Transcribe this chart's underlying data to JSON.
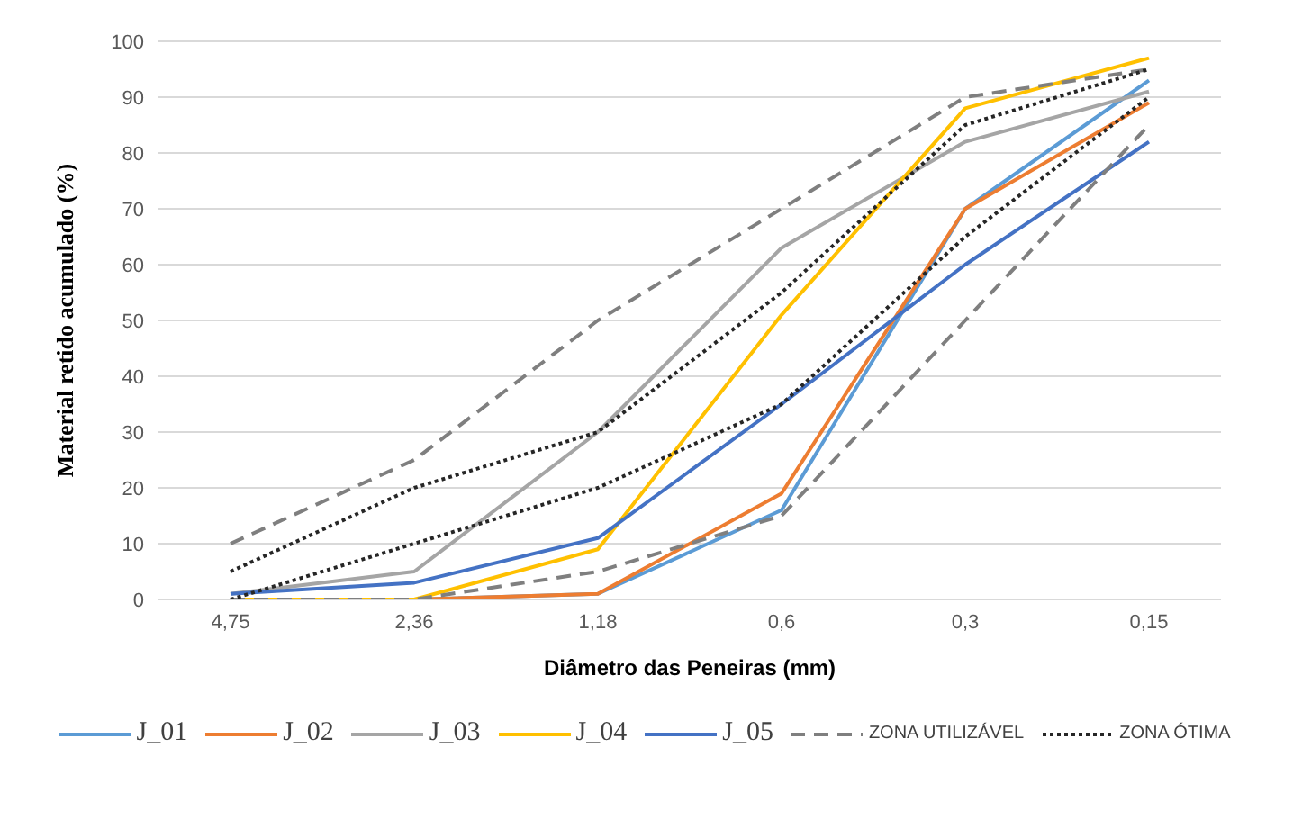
{
  "chart_data": {
    "type": "line",
    "xlabel": "Diâmetro das Peneiras (mm)",
    "ylabel": "Material retido acumulado (%)",
    "categories": [
      "4,75",
      "2,36",
      "1,18",
      "0,6",
      "0,3",
      "0,15"
    ],
    "ylim": [
      0,
      100
    ],
    "yticks": [
      0,
      10,
      20,
      30,
      40,
      50,
      60,
      70,
      80,
      90,
      100
    ],
    "grid": "y",
    "legend": "bottom",
    "marker": "none",
    "series": [
      {
        "name": "J_01",
        "color": "#5b9bd5",
        "values": [
          0,
          0,
          1,
          16,
          70,
          93
        ]
      },
      {
        "name": "J_02",
        "color": "#ed7d31",
        "values": [
          0,
          0,
          1,
          19,
          70,
          89
        ]
      },
      {
        "name": "J_03",
        "color": "#a5a5a5",
        "values": [
          1,
          5,
          30,
          63,
          82,
          91
        ]
      },
      {
        "name": "J_04",
        "color": "#ffc000",
        "values": [
          0,
          0,
          9,
          51,
          88,
          97
        ]
      },
      {
        "name": "J_05",
        "color": "#4472c4",
        "values": [
          1,
          3,
          11,
          35,
          60,
          82
        ]
      },
      {
        "name": "ZONA UTILIZÁVEL",
        "color": "#7f7f7f",
        "line_style": "dashed",
        "values": [
          10,
          25,
          50,
          70,
          90,
          95
        ]
      },
      {
        "color": "#7f7f7f",
        "line_style": "dashed",
        "values": [
          0,
          0,
          5,
          15,
          50,
          85
        ]
      },
      {
        "name": "ZONA ÓTIMA",
        "color": "#262626",
        "line_style": "dotted",
        "values": [
          5,
          20,
          30,
          55,
          85,
          95
        ]
      },
      {
        "color": "#262626",
        "line_style": "dotted",
        "values": [
          0,
          10,
          20,
          35,
          65,
          90
        ]
      }
    ]
  }
}
